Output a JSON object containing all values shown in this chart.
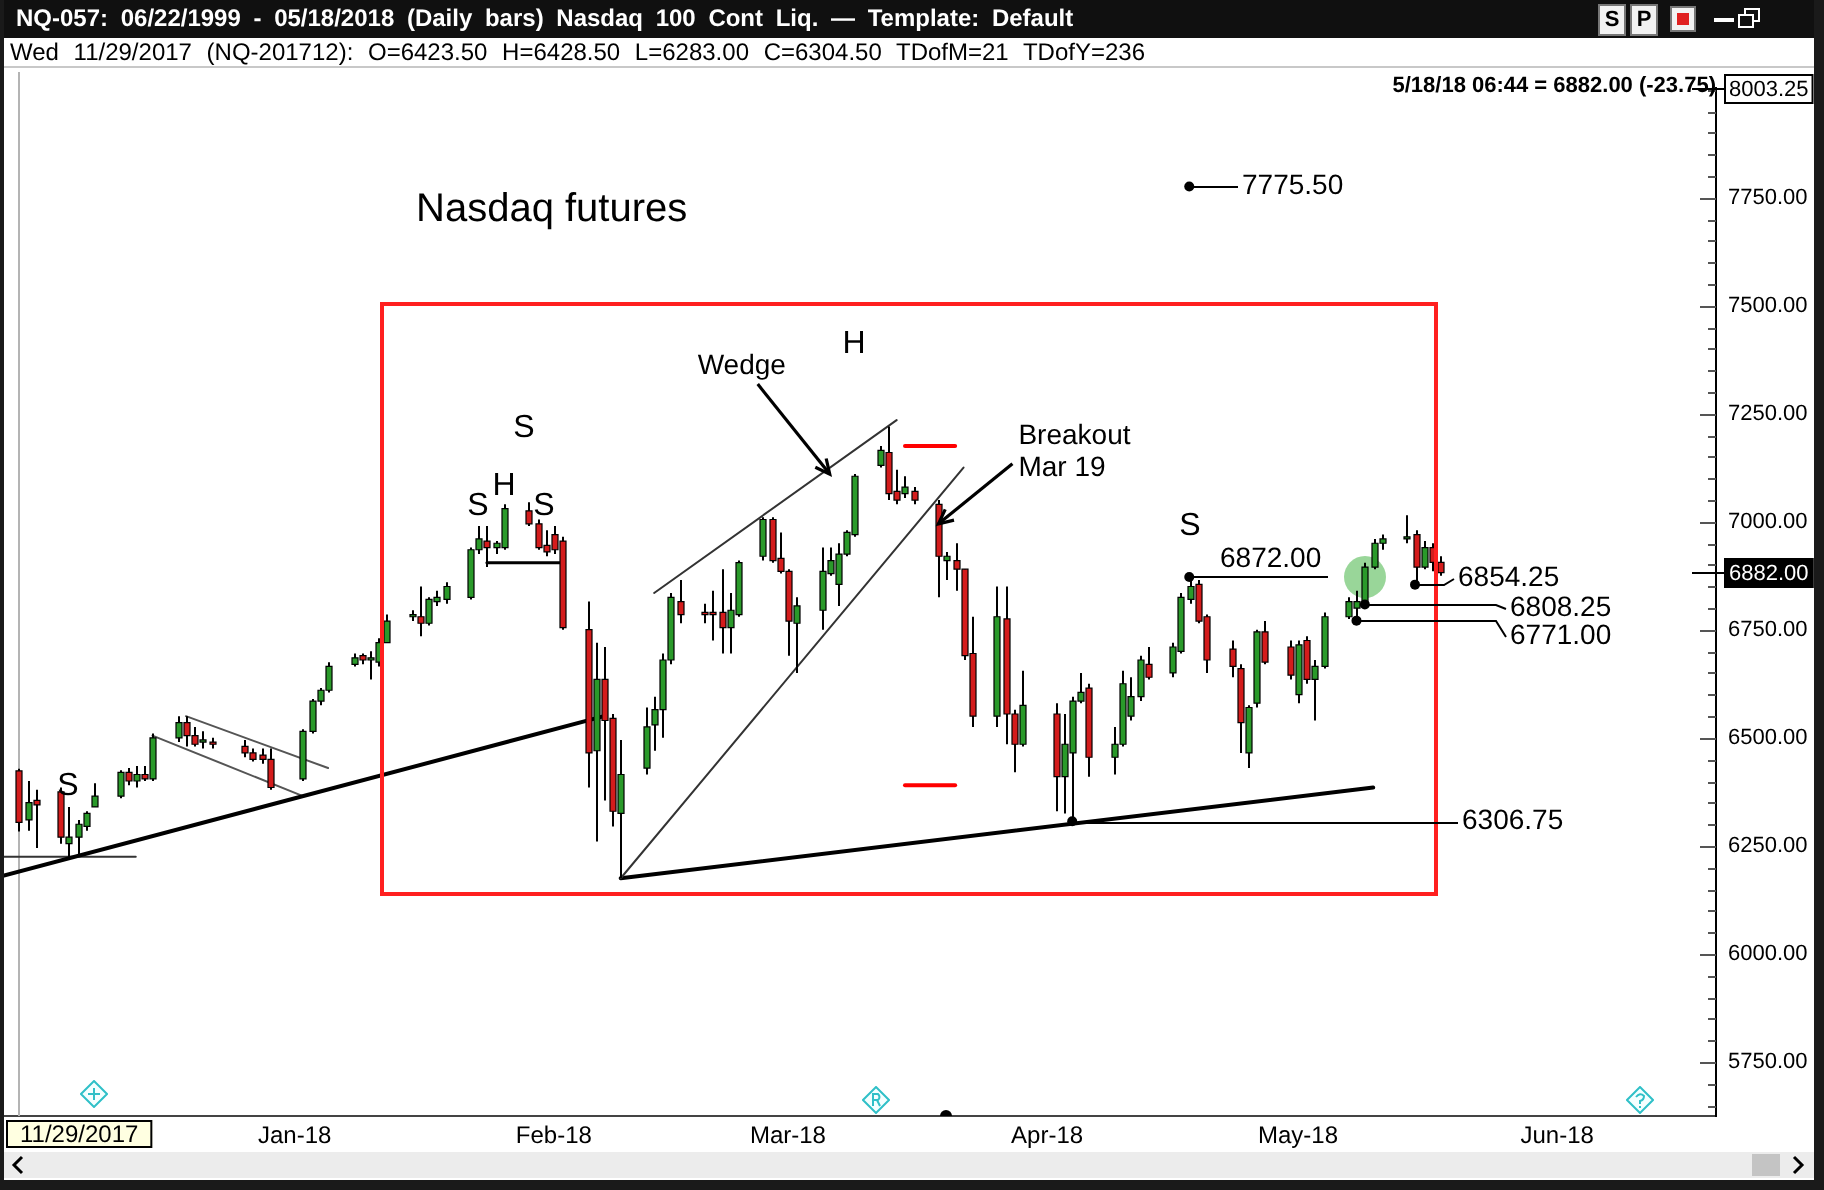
{
  "chart_data": {
    "type": "candlestick",
    "title": "Nasdaq futures",
    "x": [
      "2017-11-29",
      "2017-11-30",
      "2017-12-01",
      "2017-12-04",
      "2017-12-05",
      "2017-12-06",
      "2017-12-07",
      "2017-12-08",
      "2017-12-11",
      "2017-12-12",
      "2017-12-13",
      "2017-12-14",
      "2017-12-15",
      "2017-12-18",
      "2017-12-19",
      "2017-12-20",
      "2017-12-21",
      "2017-12-22",
      "2017-12-26",
      "2017-12-27",
      "2017-12-28",
      "2017-12-29",
      "2018-01-02",
      "2018-01-03",
      "2018-01-04",
      "2018-01-05",
      "2018-01-08",
      "2018-01-09",
      "2018-01-10",
      "2018-01-11",
      "2018-01-12",
      "2018-01-15",
      "2018-01-16",
      "2018-01-17",
      "2018-01-18",
      "2018-01-19",
      "2018-01-22",
      "2018-01-23",
      "2018-01-24",
      "2018-01-25",
      "2018-01-26",
      "2018-01-29",
      "2018-01-30",
      "2018-01-31",
      "2018-02-01",
      "2018-02-02",
      "2018-02-05",
      "2018-02-06",
      "2018-02-07",
      "2018-02-08",
      "2018-02-09",
      "2018-02-12",
      "2018-02-13",
      "2018-02-14",
      "2018-02-15",
      "2018-02-16",
      "2018-02-19",
      "2018-02-20",
      "2018-02-21",
      "2018-02-22",
      "2018-02-23",
      "2018-02-26",
      "2018-02-27",
      "2018-02-28",
      "2018-03-01",
      "2018-03-02",
      "2018-03-05",
      "2018-03-06",
      "2018-03-07",
      "2018-03-08",
      "2018-03-09",
      "2018-03-12",
      "2018-03-13",
      "2018-03-14",
      "2018-03-15",
      "2018-03-16",
      "2018-03-19",
      "2018-03-20",
      "2018-03-21",
      "2018-03-22",
      "2018-03-23",
      "2018-03-26",
      "2018-03-27",
      "2018-03-28",
      "2018-03-29",
      "2018-04-02",
      "2018-04-03",
      "2018-04-04",
      "2018-04-05",
      "2018-04-06",
      "2018-04-09",
      "2018-04-10",
      "2018-04-11",
      "2018-04-12",
      "2018-04-13",
      "2018-04-16",
      "2018-04-17",
      "2018-04-18",
      "2018-04-19",
      "2018-04-20",
      "2018-04-23",
      "2018-04-24",
      "2018-04-25",
      "2018-04-26",
      "2018-04-27",
      "2018-04-30",
      "2018-05-01",
      "2018-05-02",
      "2018-05-03",
      "2018-05-04",
      "2018-05-07",
      "2018-05-08",
      "2018-05-09",
      "2018-05-10",
      "2018-05-11",
      "2018-05-14",
      "2018-05-15",
      "2018-05-16",
      "2018-05-17",
      "2018-05-18"
    ],
    "ohlc": [
      [
        6423.5,
        6428.5,
        6283,
        6304.5
      ],
      [
        6310,
        6400,
        6285,
        6350
      ],
      [
        6355,
        6380,
        6245,
        6345
      ],
      [
        6375,
        6385,
        6255,
        6270
      ],
      [
        6255,
        6340,
        6220,
        6270
      ],
      [
        6270,
        6310,
        6225,
        6300
      ],
      [
        6295,
        6330,
        6285,
        6325
      ],
      [
        6340,
        6395,
        6340,
        6365
      ],
      [
        6365,
        6425,
        6360,
        6420
      ],
      [
        6420,
        6430,
        6390,
        6400
      ],
      [
        6400,
        6435,
        6385,
        6415
      ],
      [
        6415,
        6435,
        6400,
        6405
      ],
      [
        6405,
        6510,
        6400,
        6500
      ],
      [
        6500,
        6550,
        6490,
        6535
      ],
      [
        6535,
        6550,
        6480,
        6505
      ],
      [
        6505,
        6525,
        6480,
        6485
      ],
      [
        6490,
        6515,
        6475,
        6495
      ],
      [
        6490,
        6500,
        6475,
        6485
      ],
      [
        6480,
        6495,
        6455,
        6465
      ],
      [
        6465,
        6475,
        6445,
        6450
      ],
      [
        6460,
        6475,
        6440,
        6450
      ],
      [
        6450,
        6475,
        6380,
        6385
      ],
      [
        6405,
        6520,
        6400,
        6515
      ],
      [
        6515,
        6590,
        6510,
        6585
      ],
      [
        6585,
        6615,
        6575,
        6610
      ],
      [
        6610,
        6675,
        6605,
        6665
      ],
      [
        6670,
        6695,
        6665,
        6685
      ],
      [
        6690,
        6695,
        6670,
        6680
      ],
      [
        6680,
        6700,
        6635,
        6685
      ],
      [
        6675,
        6730,
        6665,
        6720
      ],
      [
        6720,
        6785,
        6720,
        6770
      ],
      [
        6780,
        6795,
        6770,
        6785
      ],
      [
        6780,
        6850,
        6735,
        6765
      ],
      [
        6765,
        6825,
        6760,
        6820
      ],
      [
        6815,
        6840,
        6805,
        6825
      ],
      [
        6820,
        6860,
        6810,
        6850
      ],
      [
        6825,
        6940,
        6820,
        6935
      ],
      [
        6935,
        6990,
        6925,
        6960
      ],
      [
        6955,
        6990,
        6895,
        6940
      ],
      [
        6940,
        6955,
        6925,
        6950
      ],
      [
        6940,
        7040,
        6935,
        7030
      ],
      [
        7025,
        7045,
        6990,
        6995
      ],
      [
        6995,
        7005,
        6935,
        6940
      ],
      [
        6945,
        6980,
        6920,
        6930
      ],
      [
        6970,
        6990,
        6925,
        6935
      ],
      [
        6955,
        6965,
        6750,
        6755
      ],
      [
        6750,
        6815,
        6385,
        6465
      ],
      [
        6470,
        6720,
        6260,
        6635
      ],
      [
        6635,
        6710,
        6355,
        6540
      ],
      [
        6545,
        6555,
        6295,
        6330
      ],
      [
        6325,
        6495,
        6175,
        6415
      ],
      [
        6430,
        6570,
        6415,
        6525
      ],
      [
        6530,
        6595,
        6470,
        6565
      ],
      [
        6565,
        6695,
        6500,
        6680
      ],
      [
        6680,
        6835,
        6670,
        6825
      ],
      [
        6815,
        6865,
        6765,
        6785
      ],
      [
        6790,
        6810,
        6765,
        6785
      ],
      [
        6790,
        6840,
        6725,
        6785
      ],
      [
        6790,
        6890,
        6695,
        6755
      ],
      [
        6755,
        6835,
        6695,
        6795
      ],
      [
        6785,
        6910,
        6780,
        6905
      ],
      [
        6920,
        7010,
        6910,
        7005
      ],
      [
        7005,
        7010,
        6905,
        6910
      ],
      [
        6915,
        6975,
        6880,
        6885
      ],
      [
        6885,
        6890,
        6690,
        6770
      ],
      [
        6765,
        6825,
        6650,
        6805
      ],
      [
        6795,
        6940,
        6750,
        6885
      ],
      [
        6880,
        6940,
        6875,
        6910
      ],
      [
        6855,
        6950,
        6805,
        6925
      ],
      [
        6925,
        6980,
        6920,
        6975
      ],
      [
        6970,
        7110,
        6965,
        7105
      ],
      [
        7130,
        7175,
        7125,
        7165
      ],
      [
        7160,
        7220,
        7050,
        7065
      ],
      [
        7070,
        7120,
        7040,
        7050
      ],
      [
        7065,
        7105,
        7055,
        7080
      ],
      [
        7070,
        7080,
        7040,
        7050
      ],
      [
        7040,
        7050,
        6825,
        6920
      ],
      [
        6910,
        6930,
        6865,
        6920
      ],
      [
        6910,
        6950,
        6840,
        6890
      ],
      [
        6890,
        6890,
        6680,
        6690
      ],
      [
        6695,
        6780,
        6525,
        6550
      ],
      [
        6550,
        6850,
        6525,
        6780
      ],
      [
        6775,
        6850,
        6485,
        6555
      ],
      [
        6555,
        6565,
        6420,
        6485
      ],
      [
        6485,
        6655,
        6480,
        6575
      ],
      [
        6555,
        6580,
        6330,
        6410
      ],
      [
        6410,
        6555,
        6325,
        6485
      ],
      [
        6465,
        6595,
        6306.75,
        6585
      ],
      [
        6585,
        6650,
        6580,
        6605
      ],
      [
        6615,
        6625,
        6410,
        6455
      ],
      [
        6455,
        6525,
        6415,
        6485
      ],
      [
        6485,
        6655,
        6480,
        6625
      ],
      [
        6550,
        6640,
        6540,
        6595
      ],
      [
        6595,
        6690,
        6585,
        6680
      ],
      [
        6670,
        6710,
        6635,
        6640
      ],
      [
        6650,
        6720,
        6640,
        6710
      ],
      [
        6700,
        6835,
        6695,
        6825
      ],
      [
        6820,
        6872,
        6810,
        6850
      ],
      [
        6855,
        6865,
        6765,
        6770
      ],
      [
        6780,
        6785,
        6650,
        6680
      ],
      [
        6705,
        6725,
        6640,
        6665
      ],
      [
        6660,
        6670,
        6465,
        6535
      ],
      [
        6465,
        6575,
        6430,
        6570
      ],
      [
        6580,
        6750,
        6570,
        6745
      ],
      [
        6745,
        6770,
        6670,
        6675
      ],
      [
        6710,
        6725,
        6635,
        6645
      ],
      [
        6600,
        6725,
        6580,
        6715
      ],
      [
        6725,
        6735,
        6625,
        6635
      ],
      [
        6635,
        6680,
        6540,
        6665
      ],
      [
        6665,
        6790,
        6660,
        6780
      ],
      [
        6780,
        6825,
        6775,
        6815
      ],
      [
        6800,
        6840,
        6771,
        6815
      ],
      [
        6815,
        6905,
        6808.25,
        6895
      ],
      [
        6895,
        6960,
        6890,
        6950
      ],
      [
        6950,
        6970,
        6935,
        6960
      ],
      [
        6960,
        7015,
        6950,
        6965
      ],
      [
        6970,
        6980,
        6854.25,
        6895
      ],
      [
        6895,
        6955,
        6890,
        6940
      ],
      [
        6940,
        6950,
        6885,
        6905.75
      ],
      [
        6905.75,
        6920,
        6875,
        6882
      ]
    ],
    "colors": [
      "#d41c1c",
      "#2a9a2a",
      "#d41c1c",
      "#d41c1c",
      "#2a9a2a",
      "#2a9a2a",
      "#2a9a2a",
      "#2a9a2a",
      "#2a9a2a",
      "#d41c1c",
      "#2a9a2a",
      "#d41c1c",
      "#2a9a2a",
      "#2a9a2a",
      "#d41c1c",
      "#d41c1c",
      "#2a9a2a",
      "#d41c1c",
      "#d41c1c",
      "#d41c1c",
      "#d41c1c",
      "#d41c1c",
      "#2a9a2a",
      "#2a9a2a",
      "#2a9a2a",
      "#2a9a2a",
      "#2a9a2a",
      "#d41c1c",
      "#2a9a2a",
      "#2a9a2a",
      "#2a9a2a",
      "#2a9a2a",
      "#d41c1c",
      "#2a9a2a",
      "#2a9a2a",
      "#2a9a2a",
      "#2a9a2a",
      "#2a9a2a",
      "#d41c1c",
      "#2a9a2a",
      "#2a9a2a",
      "#d41c1c",
      "#d41c1c",
      "#d41c1c",
      "#d41c1c",
      "#d41c1c",
      "#d41c1c",
      "#2a9a2a",
      "#d41c1c",
      "#d41c1c",
      "#2a9a2a",
      "#2a9a2a",
      "#2a9a2a",
      "#2a9a2a",
      "#2a9a2a",
      "#d41c1c",
      "#d41c1c",
      "#d41c1c",
      "#d41c1c",
      "#2a9a2a",
      "#2a9a2a",
      "#2a9a2a",
      "#d41c1c",
      "#d41c1c",
      "#d41c1c",
      "#2a9a2a",
      "#2a9a2a",
      "#2a9a2a",
      "#2a9a2a",
      "#2a9a2a",
      "#2a9a2a",
      "#2a9a2a",
      "#d41c1c",
      "#d41c1c",
      "#2a9a2a",
      "#d41c1c",
      "#d41c1c",
      "#2a9a2a",
      "#d41c1c",
      "#d41c1c",
      "#d41c1c",
      "#2a9a2a",
      "#d41c1c",
      "#d41c1c",
      "#2a9a2a",
      "#d41c1c",
      "#2a9a2a",
      "#2a9a2a",
      "#2a9a2a",
      "#d41c1c",
      "#2a9a2a",
      "#2a9a2a",
      "#2a9a2a",
      "#2a9a2a",
      "#d41c1c",
      "#2a9a2a",
      "#2a9a2a",
      "#2a9a2a",
      "#d41c1c",
      "#d41c1c",
      "#d41c1c",
      "#d41c1c",
      "#2a9a2a",
      "#2a9a2a",
      "#d41c1c",
      "#d41c1c",
      "#2a9a2a",
      "#d41c1c",
      "#2a9a2a",
      "#2a9a2a",
      "#2a9a2a",
      "#2a9a2a",
      "#2a9a2a",
      "#2a9a2a",
      "#2a9a2a",
      "#2a9a2a",
      "#d41c1c",
      "#2a9a2a",
      "#d41c1c",
      "#d41c1c"
    ],
    "series": [
      {
        "type": "line",
        "x": [
          "2017-11-27",
          "2018-02-07"
        ],
        "values": [
          6180,
          6550
        ],
        "color": "#000000"
      },
      {
        "type": "line",
        "x": [
          "2017-11-27",
          "2017-12-13"
        ],
        "values": [
          6225,
          6225
        ],
        "color": "#333333"
      },
      {
        "type": "line",
        "x": [
          "2017-12-19",
          "2018-01-05"
        ],
        "values": [
          6550,
          6430
        ],
        "color": "#555555"
      },
      {
        "type": "line",
        "x": [
          "2017-12-15",
          "2018-01-02"
        ],
        "values": [
          6505,
          6365
        ],
        "color": "#555555"
      },
      {
        "type": "line",
        "x": [
          "2018-01-24",
          "2018-02-02"
        ],
        "values": [
          6905,
          6905
        ],
        "color": "#000000"
      },
      {
        "type": "line",
        "x": [
          "2018-02-13",
          "2018-03-14"
        ],
        "values": [
          6835,
          7235
        ],
        "color": "#333333"
      },
      {
        "type": "line",
        "x": [
          "2018-02-09",
          "2018-03-22"
        ],
        "values": [
          6175,
          7125
        ],
        "color": "#333333"
      },
      {
        "type": "line",
        "x": [
          "2018-02-09",
          "2018-05-10"
        ],
        "values": [
          6175,
          6385
        ],
        "color": "#000000"
      },
      {
        "type": "line",
        "x": [
          "2018-03-15",
          "2018-03-21"
        ],
        "values": [
          7175,
          7175
        ],
        "color": "#ff0000"
      },
      {
        "type": "line",
        "x": [
          "2018-03-15",
          "2018-03-21"
        ],
        "values": [
          6390,
          6390
        ],
        "color": "#ff0000"
      }
    ],
    "xlim": [
      "2017-11-27",
      "2018-06-20"
    ],
    "xticks": [
      {
        "value": "2018-01-01",
        "label": "Jan-18"
      },
      {
        "value": "2018-02-01",
        "label": "Feb-18"
      },
      {
        "value": "2018-03-01",
        "label": "Mar-18"
      },
      {
        "value": "2018-04-01",
        "label": "Apr-18"
      },
      {
        "value": "2018-05-01",
        "label": "May-18"
      },
      {
        "value": "2018-06-01",
        "label": "Jun-18"
      }
    ],
    "ylim": [
      5625,
      8003.25
    ],
    "yticks": [
      {
        "value": 5650,
        "label": null
      },
      {
        "value": 5700,
        "label": null
      },
      {
        "value": 5750,
        "label": "5750.00"
      },
      {
        "value": 5800,
        "label": null
      },
      {
        "value": 5850,
        "label": null
      },
      {
        "value": 5900,
        "label": null
      },
      {
        "value": 5950,
        "label": null
      },
      {
        "value": 6000,
        "label": "6000.00"
      },
      {
        "value": 6050,
        "label": null
      },
      {
        "value": 6100,
        "label": null
      },
      {
        "value": 6150,
        "label": null
      },
      {
        "value": 6200,
        "label": null
      },
      {
        "value": 6250,
        "label": "6250.00"
      },
      {
        "value": 6300,
        "label": null
      },
      {
        "value": 6350,
        "label": null
      },
      {
        "value": 6400,
        "label": null
      },
      {
        "value": 6450,
        "label": null
      },
      {
        "value": 6500,
        "label": "6500.00"
      },
      {
        "value": 6550,
        "label": null
      },
      {
        "value": 6600,
        "label": null
      },
      {
        "value": 6650,
        "label": null
      },
      {
        "value": 6700,
        "label": null
      },
      {
        "value": 6750,
        "label": "6750.00"
      },
      {
        "value": 6800,
        "label": null
      },
      {
        "value": 6850,
        "label": null
      },
      {
        "value": 6900,
        "label": null
      },
      {
        "value": 6950,
        "label": null
      },
      {
        "value": 7000,
        "label": "7000.00"
      },
      {
        "value": 7050,
        "label": null
      },
      {
        "value": 7100,
        "label": null
      },
      {
        "value": 7150,
        "label": null
      },
      {
        "value": 7200,
        "label": null
      },
      {
        "value": 7250,
        "label": "7250.00"
      },
      {
        "value": 7300,
        "label": null
      },
      {
        "value": 7350,
        "label": null
      },
      {
        "value": 7400,
        "label": null
      },
      {
        "value": 7450,
        "label": null
      },
      {
        "value": 7500,
        "label": "7500.00"
      },
      {
        "value": 7550,
        "label": null
      },
      {
        "value": 7600,
        "label": null
      },
      {
        "value": 7650,
        "label": null
      },
      {
        "value": 7700,
        "label": null
      },
      {
        "value": 7750,
        "label": "7750.00"
      },
      {
        "value": 7800,
        "label": null
      },
      {
        "value": 7850,
        "label": null
      },
      {
        "value": 7900,
        "label": null
      },
      {
        "value": 7950,
        "label": null
      },
      {
        "value": 8000,
        "label": null
      }
    ],
    "ref_lines": [
      {
        "axis": "y",
        "value": 8003.25,
        "label": "8003.25",
        "color": "#000000"
      },
      {
        "axis": "y",
        "value": 6882,
        "label": "6882.00",
        "color": "#000000"
      },
      {
        "axis": "x",
        "value": "2017-11-29",
        "label": "11/29/2017",
        "color": "#b4b4b4"
      }
    ],
    "annotations": [
      "NQ-057: 06/22/1999 - 05/18/2018 (Daily bars) Nasdaq 100 Cont Liq. — Template: Default",
      "Wed 11/29/2017 (NQ-201712): O=6423.50 H=6428.50 L=6283.00 C=6304.50 TDofM=21 TDofY=236",
      "5/18/18 06:44 = 6882.00 (-23.75)",
      "S",
      "P",
      {
        "text": "Wedge",
        "x": "2018-03-06",
        "y": 7110
      },
      {
        "text": "Breakout\nMar 19",
        "x": "2018-03-19",
        "y": 6995
      },
      "S",
      "S",
      "H",
      "S",
      "S",
      "H",
      "S",
      {
        "text": "7775.50",
        "x": "2018-04-18",
        "y": 7775.5
      },
      {
        "text": "6872.00",
        "x": "2018-04-18",
        "y": 6872
      },
      {
        "text": "6854.25",
        "x": "2018-05-15",
        "y": 6854.25
      },
      {
        "text": "6808.25",
        "x": "2018-05-09",
        "y": 6808.25
      },
      {
        "text": "6771.00",
        "x": "2018-05-08",
        "y": 6771
      },
      {
        "text": "6306.75",
        "x": "2018-04-04",
        "y": 6306.75
      }
    ]
  }
}
